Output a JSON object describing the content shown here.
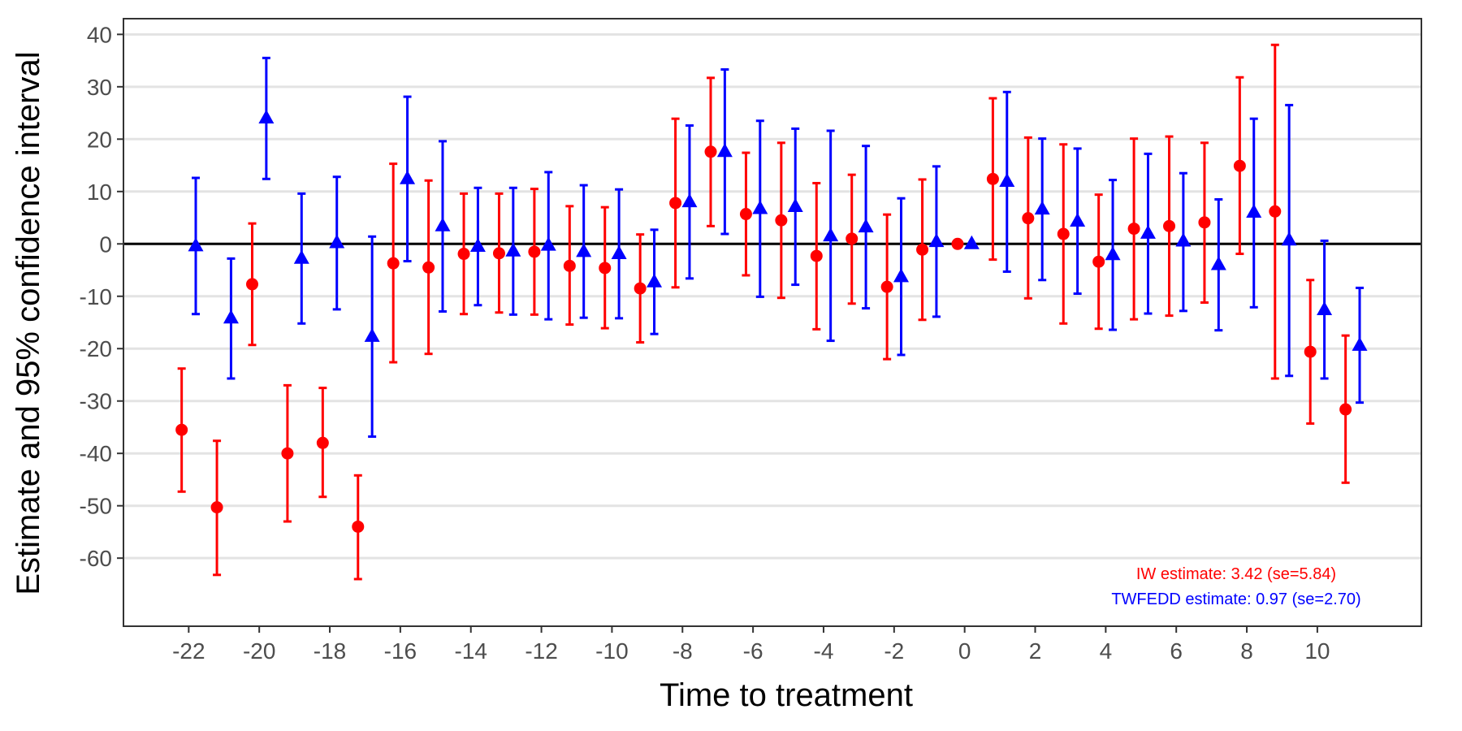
{
  "chart_data": {
    "type": "scatter",
    "title": "",
    "xlabel": "Time to treatment",
    "ylabel": "Estimate and 95% confidence interval",
    "xlim": [
      -23.85,
      12.95
    ],
    "ylim": [
      -73,
      43
    ],
    "x_ticks": [
      -22,
      -20,
      -18,
      -16,
      -14,
      -12,
      -10,
      -8,
      -6,
      -4,
      -2,
      0,
      2,
      4,
      6,
      8,
      10
    ],
    "x_tick_labels": [
      "-22",
      "-20",
      "-18",
      "-16",
      "-14",
      "-12",
      "-10",
      "-8",
      "-6",
      "-4",
      "-2",
      "0",
      "2",
      "4",
      "6",
      "8",
      "10"
    ],
    "y_ticks": [
      40,
      30,
      20,
      10,
      0,
      -10,
      -20,
      -30,
      -40,
      -50,
      -60
    ],
    "y_tick_labels": [
      "40",
      "30",
      "20",
      "10",
      "0",
      "-10",
      "-20",
      "-30",
      "-40",
      "-50",
      "-60"
    ],
    "grid": "horizontal major lines",
    "reference_line_y": 0,
    "series": [
      {
        "name": "IW",
        "color": "#ff0000",
        "marker": "circle",
        "x_offset": -0.2,
        "points": [
          {
            "x": -22,
            "est": -35.5,
            "lo": -47.3,
            "hi": -23.8
          },
          {
            "x": -21,
            "est": -50.3,
            "lo": -63.2,
            "hi": -37.6
          },
          {
            "x": -20,
            "est": -7.7,
            "lo": -19.3,
            "hi": 3.9
          },
          {
            "x": -19,
            "est": -40.0,
            "lo": -53.0,
            "hi": -27.0
          },
          {
            "x": -18,
            "est": -38.0,
            "lo": -48.3,
            "hi": -27.5
          },
          {
            "x": -17,
            "est": -54.0,
            "lo": -64.0,
            "hi": -44.2
          },
          {
            "x": -16,
            "est": -3.7,
            "lo": -22.6,
            "hi": 15.3
          },
          {
            "x": -15,
            "est": -4.5,
            "lo": -21.0,
            "hi": 12.1
          },
          {
            "x": -14,
            "est": -1.9,
            "lo": -13.4,
            "hi": 9.6
          },
          {
            "x": -13,
            "est": -1.8,
            "lo": -13.1,
            "hi": 9.6
          },
          {
            "x": -12,
            "est": -1.5,
            "lo": -13.5,
            "hi": 10.5
          },
          {
            "x": -11,
            "est": -4.2,
            "lo": -15.4,
            "hi": 7.2
          },
          {
            "x": -10,
            "est": -4.6,
            "lo": -16.1,
            "hi": 7.0
          },
          {
            "x": -9,
            "est": -8.5,
            "lo": -18.8,
            "hi": 1.8
          },
          {
            "x": -8,
            "est": 7.8,
            "lo": -8.3,
            "hi": 23.9
          },
          {
            "x": -7,
            "est": 17.6,
            "lo": 3.4,
            "hi": 31.7
          },
          {
            "x": -6,
            "est": 5.7,
            "lo": -6.0,
            "hi": 17.4
          },
          {
            "x": -5,
            "est": 4.5,
            "lo": -10.3,
            "hi": 19.3
          },
          {
            "x": -4,
            "est": -2.3,
            "lo": -16.3,
            "hi": 11.6
          },
          {
            "x": -3,
            "est": 1.0,
            "lo": -11.4,
            "hi": 13.2
          },
          {
            "x": -2,
            "est": -8.2,
            "lo": -22.0,
            "hi": 5.6
          },
          {
            "x": -1,
            "est": -1.1,
            "lo": -14.5,
            "hi": 12.3
          },
          {
            "x": 0,
            "est": 0.0,
            "lo": 0.0,
            "hi": 0.0
          },
          {
            "x": 1,
            "est": 12.4,
            "lo": -3.0,
            "hi": 27.8
          },
          {
            "x": 2,
            "est": 4.9,
            "lo": -10.4,
            "hi": 20.3
          },
          {
            "x": 3,
            "est": 1.9,
            "lo": -15.2,
            "hi": 19.0
          },
          {
            "x": 4,
            "est": -3.4,
            "lo": -16.2,
            "hi": 9.4
          },
          {
            "x": 5,
            "est": 2.9,
            "lo": -14.4,
            "hi": 20.1
          },
          {
            "x": 6,
            "est": 3.4,
            "lo": -13.7,
            "hi": 20.5
          },
          {
            "x": 7,
            "est": 4.1,
            "lo": -11.2,
            "hi": 19.3
          },
          {
            "x": 8,
            "est": 14.9,
            "lo": -1.9,
            "hi": 31.8
          },
          {
            "x": 9,
            "est": 6.2,
            "lo": -25.7,
            "hi": 38.0
          },
          {
            "x": 10,
            "est": -20.6,
            "lo": -34.3,
            "hi": -6.9
          },
          {
            "x": 11,
            "est": -31.6,
            "lo": -45.6,
            "hi": -17.5
          }
        ]
      },
      {
        "name": "TWFEDD",
        "color": "#0000ff",
        "marker": "triangle",
        "x_offset": 0.2,
        "points": [
          {
            "x": -22,
            "est": -0.4,
            "lo": -13.4,
            "hi": 12.6
          },
          {
            "x": -21,
            "est": -14.2,
            "lo": -25.7,
            "hi": -2.8
          },
          {
            "x": -20,
            "est": 24.0,
            "lo": 12.4,
            "hi": 35.5
          },
          {
            "x": -19,
            "est": -2.8,
            "lo": -15.2,
            "hi": 9.6
          },
          {
            "x": -18,
            "est": 0.2,
            "lo": -12.5,
            "hi": 12.8
          },
          {
            "x": -17,
            "est": -17.7,
            "lo": -36.8,
            "hi": 1.4
          },
          {
            "x": -16,
            "est": 12.4,
            "lo": -3.3,
            "hi": 28.1
          },
          {
            "x": -15,
            "est": 3.4,
            "lo": -12.9,
            "hi": 19.6
          },
          {
            "x": -14,
            "est": -0.5,
            "lo": -11.7,
            "hi": 10.7
          },
          {
            "x": -13,
            "est": -1.4,
            "lo": -13.5,
            "hi": 10.7
          },
          {
            "x": -12,
            "est": -0.3,
            "lo": -14.4,
            "hi": 13.7
          },
          {
            "x": -11,
            "est": -1.5,
            "lo": -14.1,
            "hi": 11.2
          },
          {
            "x": -10,
            "est": -1.9,
            "lo": -14.2,
            "hi": 10.4
          },
          {
            "x": -9,
            "est": -7.3,
            "lo": -17.2,
            "hi": 2.7
          },
          {
            "x": -8,
            "est": 8.0,
            "lo": -6.6,
            "hi": 22.6
          },
          {
            "x": -7,
            "est": 17.6,
            "lo": 1.9,
            "hi": 33.3
          },
          {
            "x": -6,
            "est": 6.7,
            "lo": -10.1,
            "hi": 23.5
          },
          {
            "x": -5,
            "est": 7.1,
            "lo": -7.8,
            "hi": 22.0
          },
          {
            "x": -4,
            "est": 1.5,
            "lo": -18.5,
            "hi": 21.6
          },
          {
            "x": -3,
            "est": 3.2,
            "lo": -12.3,
            "hi": 18.7
          },
          {
            "x": -2,
            "est": -6.3,
            "lo": -21.2,
            "hi": 8.7
          },
          {
            "x": -1,
            "est": 0.4,
            "lo": -13.9,
            "hi": 14.8
          },
          {
            "x": 0,
            "est": 0.0,
            "lo": 0.0,
            "hi": 0.0
          },
          {
            "x": 1,
            "est": 11.9,
            "lo": -5.3,
            "hi": 29.0
          },
          {
            "x": 2,
            "est": 6.6,
            "lo": -6.9,
            "hi": 20.1
          },
          {
            "x": 3,
            "est": 4.3,
            "lo": -9.5,
            "hi": 18.2
          },
          {
            "x": 4,
            "est": -2.1,
            "lo": -16.4,
            "hi": 12.2
          },
          {
            "x": 5,
            "est": 2.0,
            "lo": -13.3,
            "hi": 17.2
          },
          {
            "x": 6,
            "est": 0.5,
            "lo": -12.8,
            "hi": 13.5
          },
          {
            "x": 7,
            "est": -4.0,
            "lo": -16.5,
            "hi": 8.5
          },
          {
            "x": 8,
            "est": 6.0,
            "lo": -12.1,
            "hi": 23.9
          },
          {
            "x": 9,
            "est": 0.7,
            "lo": -25.2,
            "hi": 26.5
          },
          {
            "x": 10,
            "est": -12.6,
            "lo": -25.7,
            "hi": 0.6
          },
          {
            "x": 11,
            "est": -19.4,
            "lo": -30.3,
            "hi": -8.4
          }
        ]
      }
    ],
    "annotations": [
      {
        "text": "IW estimate: 3.42 (se=5.84)",
        "color": "#ff0000"
      },
      {
        "text": "TWFEDD estimate: 0.97 (se=2.70)",
        "color": "#0000ff"
      }
    ]
  }
}
